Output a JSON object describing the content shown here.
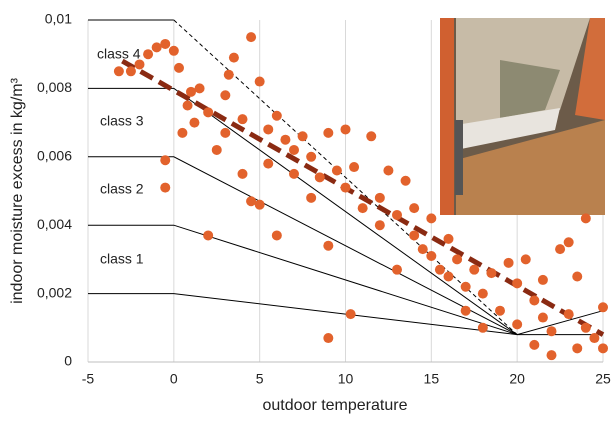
{
  "chart_data": {
    "type": "scatter",
    "xlabel": "outdoor temperature",
    "ylabel": "indoor moisture excess in kg/m³",
    "xlim": [
      -5,
      25
    ],
    "ylim": [
      0,
      0.01
    ],
    "xticks": [
      -5,
      0,
      5,
      10,
      15,
      20,
      25
    ],
    "yticks": [
      0,
      {
        "value": 0.002,
        "label": "0,002"
      },
      {
        "value": 0.004,
        "label": "0,004"
      },
      {
        "value": 0.006,
        "label": "0,006"
      },
      {
        "value": 0.008,
        "label": "0,008"
      },
      {
        "value": 0.01,
        "label": "0,01"
      }
    ],
    "grid": true,
    "color": "#e2622c",
    "x": [
      -3.2,
      -2.5,
      -2,
      -1.5,
      -1,
      -0.5,
      -0.5,
      -0.5,
      0,
      0.3,
      0.5,
      0.8,
      1,
      1.2,
      1.5,
      2,
      2,
      2.5,
      3,
      3,
      3.2,
      3.5,
      4,
      4,
      4.5,
      4.5,
      5,
      5,
      5.5,
      5.5,
      6,
      6,
      6.5,
      7,
      7,
      7.5,
      8,
      8,
      8.5,
      9,
      9,
      9,
      9.5,
      10,
      10,
      10.3,
      10.5,
      11,
      11.5,
      12,
      12,
      12.5,
      13,
      13,
      13.5,
      14,
      14,
      14.5,
      15,
      15,
      15.5,
      16,
      16,
      16.5,
      17,
      17,
      17.5,
      18,
      18,
      18.5,
      19,
      19.5,
      20,
      20,
      20.5,
      21,
      21,
      21.5,
      21.5,
      22,
      22,
      22.5,
      23,
      23,
      23.5,
      23.5,
      24,
      24,
      24.5,
      25,
      25
    ],
    "y": [
      0.0085,
      0.0085,
      0.0087,
      0.009,
      0.0092,
      0.0093,
      0.0059,
      0.0051,
      0.0091,
      0.0086,
      0.0067,
      0.0075,
      0.0079,
      0.007,
      0.008,
      0.0037,
      0.0073,
      0.0062,
      0.0078,
      0.0067,
      0.0084,
      0.0089,
      0.0071,
      0.0055,
      0.0047,
      0.0095,
      0.0082,
      0.0046,
      0.0068,
      0.0058,
      0.0072,
      0.0037,
      0.0065,
      0.0062,
      0.0055,
      0.0066,
      0.006,
      0.0048,
      0.0054,
      0.0034,
      0.0067,
      0.0007,
      0.0056,
      0.0051,
      0.0068,
      0.0014,
      0.0057,
      0.0045,
      0.0066,
      0.004,
      0.0048,
      0.0056,
      0.0043,
      0.0027,
      0.0053,
      0.0037,
      0.0045,
      0.0033,
      0.0031,
      0.0042,
      0.0027,
      0.0025,
      0.0036,
      0.003,
      0.0022,
      0.0015,
      0.0027,
      0.001,
      0.002,
      0.0026,
      0.0015,
      0.0029,
      0.0011,
      0.0023,
      0.003,
      0.0005,
      0.0018,
      0.0013,
      0.0024,
      0.0002,
      0.0009,
      0.0033,
      0.0014,
      0.0035,
      0.0025,
      0.0004,
      0.001,
      0.0042,
      0.0007,
      0.0016,
      0.0004
    ],
    "class_lines": [
      {
        "x": [
          -5,
          0,
          20,
          25
        ],
        "y": [
          0.002,
          0.002,
          0.0008,
          0.0015
        ]
      },
      {
        "x": [
          -5,
          0,
          20,
          25
        ],
        "y": [
          0.004,
          0.004,
          0.0008,
          0.0008
        ]
      },
      {
        "x": [
          -5,
          0,
          20
        ],
        "y": [
          0.006,
          0.006,
          0.0008
        ]
      },
      {
        "x": [
          -5,
          0,
          20
        ],
        "y": [
          0.008,
          0.008,
          0.0008
        ]
      }
    ],
    "limit_line": {
      "x": [
        0,
        20
      ],
      "y": [
        0.01,
        0.0008
      ]
    },
    "top_line": {
      "x": [
        -5,
        0
      ],
      "y": [
        0.01,
        0.01
      ]
    },
    "trend": {
      "x": [
        -3,
        25
      ],
      "y": [
        0.0088,
        0.0008
      ],
      "color": "#8a2a12"
    },
    "annotations": [
      "class 1",
      "class 2",
      "class 3",
      "class 4"
    ]
  }
}
